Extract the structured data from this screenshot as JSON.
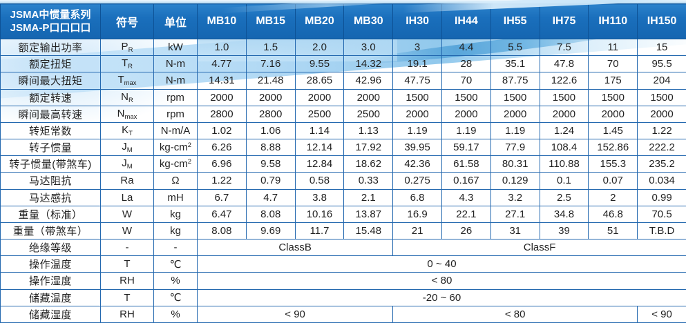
{
  "colors": {
    "header_blue": "#1a6fbc",
    "header_border": "#0d5296",
    "grid_blue": "#2368af",
    "swoosh_light": "#bfe0f4",
    "swoosh_core": "#5aa8de",
    "text": "#222222"
  },
  "table": {
    "header": {
      "title_line1": "JSMA中惯量系列",
      "title_line2": "JSMA-P口口口口",
      "symbol_col": "符号",
      "unit_col": "单位",
      "models": [
        "MB10",
        "MB15",
        "MB20",
        "MB30",
        "IH30",
        "IH44",
        "IH55",
        "IH75",
        "IH110",
        "IH150"
      ]
    },
    "rows": [
      {
        "label": "额定输出功率",
        "symbol": "P",
        "symbol_sub": "R",
        "unit": "kW",
        "values": [
          "1.0",
          "1.5",
          "2.0",
          "3.0",
          "3",
          "4.4",
          "5.5",
          "7.5",
          "11",
          "15"
        ]
      },
      {
        "label": "额定扭矩",
        "symbol": "T",
        "symbol_sub": "R",
        "unit": "N-m",
        "values": [
          "4.77",
          "7.16",
          "9.55",
          "14.32",
          "19.1",
          "28",
          "35.1",
          "47.8",
          "70",
          "95.5"
        ]
      },
      {
        "label": "瞬间最大扭矩",
        "symbol": "T",
        "symbol_sub": "max",
        "unit": "N-m",
        "values": [
          "14.31",
          "21.48",
          "28.65",
          "42.96",
          "47.75",
          "70",
          "87.75",
          "122.6",
          "175",
          "204"
        ]
      },
      {
        "label": "额定转速",
        "symbol": "N",
        "symbol_sub": "R",
        "unit": "rpm",
        "values": [
          "2000",
          "2000",
          "2000",
          "2000",
          "1500",
          "1500",
          "1500",
          "1500",
          "1500",
          "1500"
        ]
      },
      {
        "label": "瞬间最高转速",
        "symbol": "N",
        "symbol_sub": "max",
        "unit": "rpm",
        "values": [
          "2800",
          "2800",
          "2500",
          "2500",
          "2000",
          "2000",
          "2000",
          "2000",
          "2000",
          "2000"
        ]
      },
      {
        "label": "转矩常数",
        "symbol": "K",
        "symbol_sub": "T",
        "unit": "N-m/A",
        "values": [
          "1.02",
          "1.06",
          "1.14",
          "1.13",
          "1.19",
          "1.19",
          "1.19",
          "1.24",
          "1.45",
          "1.22"
        ]
      },
      {
        "label": "转子惯量",
        "symbol": "J",
        "symbol_sub": "M",
        "unit": "kg-cm",
        "unit_sup": "2",
        "values": [
          "6.26",
          "8.88",
          "12.14",
          "17.92",
          "39.95",
          "59.17",
          "77.9",
          "108.4",
          "152.86",
          "222.2"
        ]
      },
      {
        "label": "转子惯量(带煞车)",
        "symbol": "J",
        "symbol_sub": "M",
        "unit": "kg-cm",
        "unit_sup": "2",
        "values": [
          "6.96",
          "9.58",
          "12.84",
          "18.62",
          "42.36",
          "61.58",
          "80.31",
          "110.88",
          "155.3",
          "235.2"
        ]
      },
      {
        "label": "马达阻抗",
        "symbol": "Ra",
        "unit": "Ω",
        "values": [
          "1.22",
          "0.79",
          "0.58",
          "0.33",
          "0.275",
          "0.167",
          "0.129",
          "0.1",
          "0.07",
          "0.034"
        ]
      },
      {
        "label": "马达感抗",
        "symbol": "La",
        "unit": "mH",
        "values": [
          "6.7",
          "4.7",
          "3.8",
          "2.1",
          "6.8",
          "4.3",
          "3.2",
          "2.5",
          "2",
          "0.99"
        ]
      },
      {
        "label": "重量（标准）",
        "symbol": "W",
        "unit": "kg",
        "values": [
          "6.47",
          "8.08",
          "10.16",
          "13.87",
          "16.9",
          "22.1",
          "27.1",
          "34.8",
          "46.8",
          "70.5"
        ]
      },
      {
        "label": "重量（带煞车）",
        "symbol": "W",
        "unit": "kg",
        "values": [
          "8.08",
          "9.69",
          "11.7",
          "15.48",
          "21",
          "26",
          "31",
          "39",
          "51",
          "T.B.D"
        ]
      },
      {
        "label": "绝缘等级",
        "symbol": "-",
        "unit": "-",
        "spans": [
          {
            "text": "ClassB",
            "cols": 4
          },
          {
            "text": "ClassF",
            "cols": 6
          }
        ]
      },
      {
        "label": "操作温度",
        "symbol": "T",
        "unit": "℃",
        "spans": [
          {
            "text": "0 ~ 40",
            "cols": 10
          }
        ]
      },
      {
        "label": "操作湿度",
        "symbol": "RH",
        "unit": "%",
        "spans": [
          {
            "text": "< 80",
            "cols": 10
          }
        ]
      },
      {
        "label": "储藏温度",
        "symbol": "T",
        "unit": "℃",
        "spans": [
          {
            "text": "-20 ~ 60",
            "cols": 10
          }
        ]
      },
      {
        "label": "储藏湿度",
        "symbol": "RH",
        "unit": "%",
        "spans": [
          {
            "text": "< 90",
            "cols": 4
          },
          {
            "text": "< 80",
            "cols": 5
          },
          {
            "text": "< 90",
            "cols": 1
          }
        ]
      }
    ]
  }
}
